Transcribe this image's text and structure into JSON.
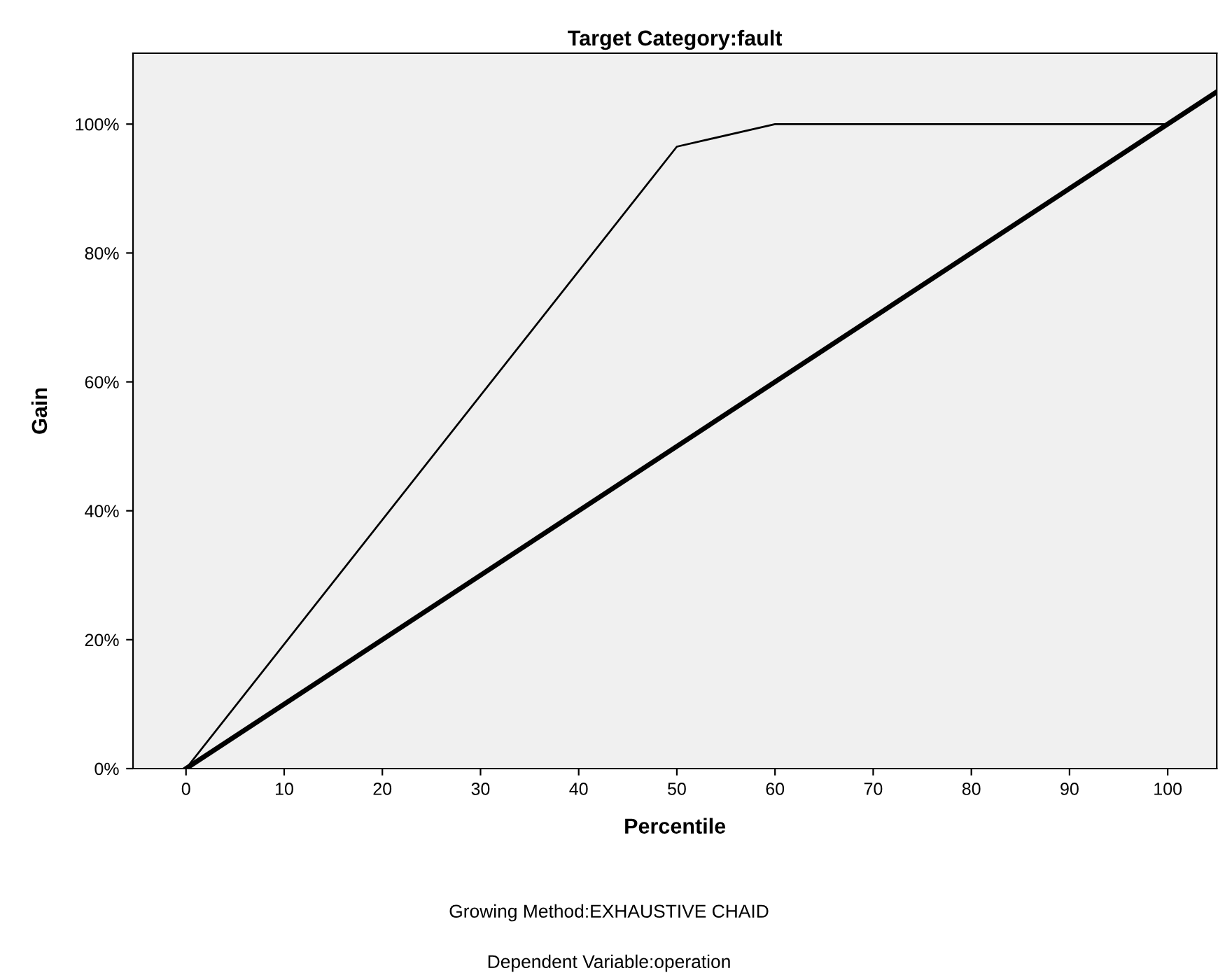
{
  "chart_data": {
    "type": "line",
    "title": "Target Category:fault",
    "xlabel": "Percentile",
    "ylabel": "Gain",
    "series": [
      {
        "x": [
          0,
          50,
          60,
          100
        ],
        "values": [
          0,
          96.5,
          100,
          100
        ],
        "color": "#000000"
      },
      {
        "x": [
          0,
          105
        ],
        "values": [
          0,
          105
        ],
        "color": "#000000"
      }
    ],
    "xlim": [
      -5.4,
      105
    ],
    "ylim": [
      0,
      111
    ],
    "xticks": [
      0,
      10,
      20,
      30,
      40,
      50,
      60,
      70,
      80,
      90,
      100
    ],
    "yticks": [
      {
        "value": 0,
        "label": "0%"
      },
      {
        "value": 20,
        "label": "20%"
      },
      {
        "value": 40,
        "label": "40%"
      },
      {
        "value": 60,
        "label": "60%"
      },
      {
        "value": 80,
        "label": "80%"
      },
      {
        "value": 100,
        "label": "100%"
      }
    ],
    "grid": false,
    "legend": false,
    "marker": "none",
    "line_style": "solid",
    "annotations": [
      "Growing Method:EXHAUSTIVE CHAID",
      "Dependent Variable:operation"
    ]
  }
}
